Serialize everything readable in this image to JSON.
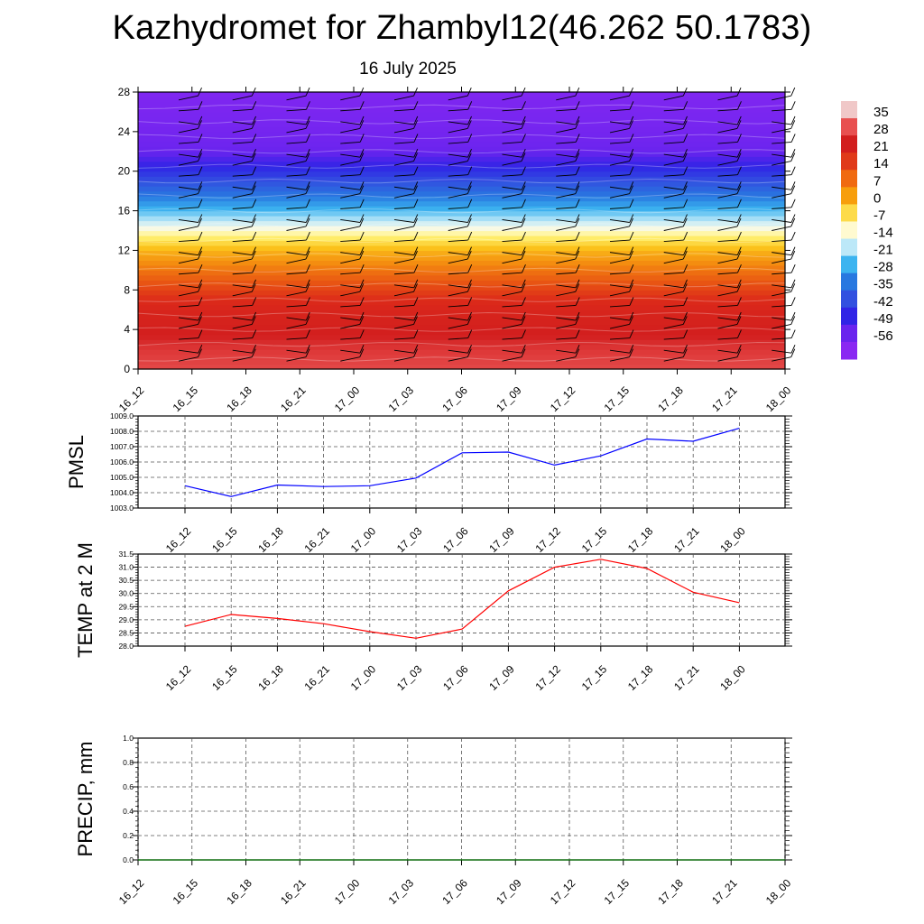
{
  "title": "Kazhydromet for Zhambyl12(46.262 50.1783)",
  "subtitle": "16 July 2025",
  "colorbar": {
    "labels": [
      "35",
      "28",
      "21",
      "14",
      "7",
      "0",
      "-7",
      "-14",
      "-21",
      "-28",
      "-35",
      "-42",
      "-49",
      "-56"
    ],
    "colors": [
      "#f0c8c8",
      "#e85050",
      "#d21e1e",
      "#e03a1a",
      "#f06a10",
      "#f79e0c",
      "#fddb4a",
      "#fffad0",
      "#bce8f8",
      "#3cb4f0",
      "#2878e0",
      "#3250e0",
      "#3024e6",
      "#6a24ee",
      "#8a28f2"
    ]
  },
  "chart_data": [
    {
      "type": "heatmap",
      "title": "",
      "xlabel": "",
      "ylabel": "",
      "x": [
        "16_12",
        "16_15",
        "16_18",
        "16_21",
        "17_00",
        "17_03",
        "17_06",
        "17_09",
        "17_12",
        "17_15",
        "17_18",
        "17_21",
        "18_00"
      ],
      "y_ticks": [
        0,
        4,
        8,
        12,
        16,
        20,
        24,
        28
      ],
      "ylim": [
        0,
        28
      ],
      "temperature_profile": [
        {
          "level": 0,
          "value": 30
        },
        {
          "level": 2,
          "value": 28
        },
        {
          "level": 4,
          "value": 24
        },
        {
          "level": 6,
          "value": 21
        },
        {
          "level": 8,
          "value": 15
        },
        {
          "level": 10,
          "value": 9
        },
        {
          "level": 12,
          "value": 2
        },
        {
          "level": 13.5,
          "value": -8
        },
        {
          "level": 14.5,
          "value": -14
        },
        {
          "level": 16,
          "value": -21
        },
        {
          "level": 17.5,
          "value": -30
        },
        {
          "level": 19,
          "value": -40
        },
        {
          "level": 20.5,
          "value": -50
        },
        {
          "level": 22,
          "value": -56
        },
        {
          "level": 24,
          "value": -58
        },
        {
          "level": 28,
          "value": -60
        }
      ],
      "wind_barbs": true,
      "grid": false
    },
    {
      "type": "line",
      "title": "",
      "ylabel": "PMSL",
      "xlabel": "",
      "x": [
        "16_12",
        "16_15",
        "16_18",
        "16_21",
        "17_00",
        "17_03",
        "17_06",
        "17_09",
        "17_12",
        "17_15",
        "17_18",
        "17_21",
        "18_00"
      ],
      "y_ticks": [
        "1003.0",
        "1004.0",
        "1005.0",
        "1006.0",
        "1007.0",
        "1008.0",
        "1009.0"
      ],
      "ylim": [
        1003,
        1009
      ],
      "series": [
        {
          "color": "#0000ff",
          "values": [
            1004.45,
            1003.75,
            1004.5,
            1004.4,
            1004.45,
            1004.95,
            1006.6,
            1006.65,
            1005.8,
            1006.4,
            1007.5,
            1007.35,
            1008.2
          ]
        }
      ],
      "grid": true
    },
    {
      "type": "line",
      "title": "",
      "ylabel": "TEMP at 2 M",
      "xlabel": "",
      "x": [
        "16_12",
        "16_15",
        "16_18",
        "16_21",
        "17_00",
        "17_03",
        "17_06",
        "17_09",
        "17_12",
        "17_15",
        "17_18",
        "17_21",
        "18_00"
      ],
      "y_ticks": [
        "28.0",
        "28.5",
        "29.0",
        "29.5",
        "30.0",
        "30.5",
        "31.0",
        "31.5"
      ],
      "ylim": [
        28,
        31.5
      ],
      "series": [
        {
          "color": "#ff0000",
          "values": [
            28.75,
            29.2,
            29.05,
            28.85,
            28.55,
            28.3,
            28.65,
            30.1,
            31.0,
            31.3,
            30.95,
            30.05,
            29.65
          ]
        }
      ],
      "grid": true
    },
    {
      "type": "line",
      "title": "",
      "ylabel": "PRECIP, mm",
      "xlabel": "",
      "x": [
        "16_12",
        "16_15",
        "16_18",
        "16_21",
        "17_00",
        "17_03",
        "17_06",
        "17_09",
        "17_12",
        "17_15",
        "17_18",
        "17_21",
        "18_00"
      ],
      "y_ticks": [
        "0.0",
        "0.2",
        "0.4",
        "0.6",
        "0.8",
        "1.0"
      ],
      "ylim": [
        0,
        1
      ],
      "series": [
        {
          "color": "#007000",
          "values": [
            0,
            0,
            0,
            0,
            0,
            0,
            0,
            0,
            0,
            0,
            0,
            0,
            0
          ]
        }
      ],
      "grid": true
    }
  ]
}
